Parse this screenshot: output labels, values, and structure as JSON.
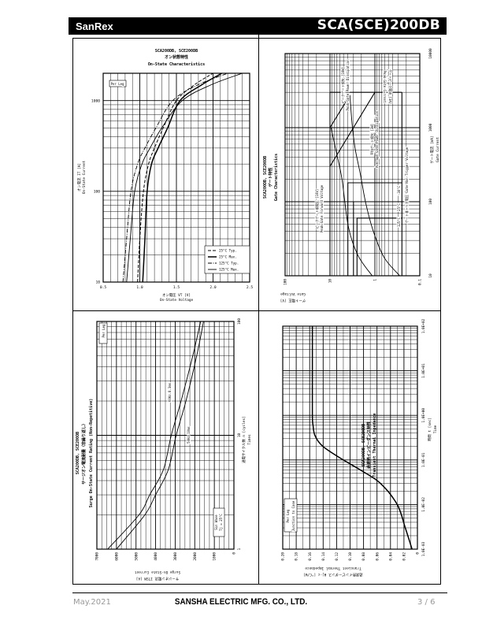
{
  "header": {
    "brand": "SanRex",
    "model": "SCA(SCE)200DB"
  },
  "footer": {
    "date": "May.2021",
    "company": "SANSHA ELECTRIC MFG. CO., LTD.",
    "page": "3 / 6"
  },
  "chart_data": [
    {
      "id": "on-state",
      "type": "line",
      "title_lines": [
        "SCA200DB, SCE200DB",
        "オン状態特性",
        "On-State Characteristics"
      ],
      "x_axis": {
        "label_lines": [
          "オン電圧 VT [V]",
          "On-State Voltage"
        ],
        "scale": "linear",
        "range": [
          0.5,
          2.5
        ],
        "grid_step": 0.1,
        "major_step": 0.5,
        "ticks": [
          0.5,
          1.0,
          1.5,
          2.0,
          2.5
        ],
        "tick_labels": [
          "0.5",
          "1.0",
          "1.5",
          "2.0",
          "2.5"
        ]
      },
      "y_axis": {
        "label_lines": [
          "オン電流 IT [A]",
          "On-State Current"
        ],
        "scale": "log",
        "range": [
          10,
          2000
        ],
        "ticks": [
          10,
          100,
          1000
        ],
        "tick_labels": [
          "10",
          "100",
          "1000"
        ]
      },
      "series": [
        {
          "name": "25°C Typ.",
          "line_style": "dashed",
          "points": [
            [
              0.97,
              10
            ],
            [
              1.0,
              30
            ],
            [
              1.05,
              100
            ],
            [
              1.12,
              200
            ],
            [
              1.2,
              300
            ],
            [
              1.32,
              500
            ],
            [
              1.5,
              1000
            ],
            [
              1.75,
              1500
            ],
            [
              2.0,
              2000
            ]
          ]
        },
        {
          "name": "25°C Max.",
          "line_style": "solid-thick",
          "points": [
            [
              1.04,
              10
            ],
            [
              1.07,
              30
            ],
            [
              1.1,
              100
            ],
            [
              1.16,
              200
            ],
            [
              1.25,
              300
            ],
            [
              1.38,
              500
            ],
            [
              1.55,
              1000
            ],
            [
              1.85,
              1500
            ],
            [
              2.12,
              2000
            ]
          ]
        },
        {
          "name": "125°C Typ.",
          "line_style": "dashdot",
          "points": [
            [
              0.77,
              10
            ],
            [
              0.82,
              30
            ],
            [
              0.88,
              100
            ],
            [
              0.97,
              200
            ],
            [
              1.07,
              300
            ],
            [
              1.22,
              500
            ],
            [
              1.45,
              1000
            ],
            [
              1.8,
              1500
            ],
            [
              2.2,
              2000
            ]
          ]
        },
        {
          "name": "125°C Max.",
          "line_style": "solid-thin",
          "points": [
            [
              0.82,
              10
            ],
            [
              0.87,
              30
            ],
            [
              0.93,
              100
            ],
            [
              1.03,
              200
            ],
            [
              1.14,
              300
            ],
            [
              1.3,
              500
            ],
            [
              1.58,
              1000
            ],
            [
              1.98,
              1500
            ],
            [
              2.4,
              2000
            ]
          ]
        }
      ],
      "legend": {
        "placement": "bottom-right",
        "show": true
      },
      "annotations": [
        "Per Leg"
      ]
    },
    {
      "id": "gate",
      "type": "line",
      "title_lines": [
        "SCA200DB, SCE200DB",
        "ゲート特性",
        "Gate Characteristics"
      ],
      "x_axis": {
        "label_lines": [
          "ゲート電流 [mA]",
          "Gate Current"
        ],
        "scale": "log",
        "range": [
          10,
          10000
        ],
        "ticks": [
          10,
          100,
          1000,
          10000
        ],
        "tick_labels": [
          "10",
          "100",
          "1000",
          "10000"
        ]
      },
      "y_axis": {
        "label_lines": [
          "ゲート電圧 [V]",
          "Gate Voltage"
        ],
        "scale": "log",
        "range": [
          0.1,
          100
        ],
        "ticks": [
          100,
          10,
          1,
          0.1
        ],
        "tick_labels": [
          "100",
          "10",
          "1",
          "0.1"
        ]
      },
      "series": [
        {
          "name": "Peak Gate Forward Voltage limit",
          "line_style": "straight",
          "points": [
            [
              10,
              10
            ],
            [
              3000,
              10
            ]
          ]
        },
        {
          "name": "Peak Gate Current limit",
          "line_style": "straight",
          "points": [
            [
              3000,
              10
            ],
            [
              3000,
              0.25
            ]
          ]
        },
        {
          "name": "Gate Non-Trigger Voltage",
          "line_style": "straight",
          "points": [
            [
              10,
              0.25
            ],
            [
              3000,
              0.25
            ]
          ]
        },
        {
          "name": "Gate trigger -30°C",
          "line_style": "straight",
          "points": [
            [
              10,
              4
            ],
            [
              180,
              4
            ],
            [
              180,
              0.25
            ]
          ]
        },
        {
          "name": "Gate trigger 25°C",
          "line_style": "straight",
          "points": [
            [
              10,
              3
            ],
            [
              100,
              3
            ],
            [
              100,
              0.25
            ]
          ]
        },
        {
          "name": "Gate trigger 125°C",
          "line_style": "straight",
          "points": [
            [
              10,
              2.5
            ],
            [
              60,
              2.5
            ],
            [
              60,
              0.25
            ]
          ]
        },
        {
          "name": "Peak Gate Power Dissipation 10W",
          "line_style": "straight",
          "points": [
            [
              1000,
              10
            ],
            [
              2750,
              3.6
            ]
          ]
        },
        {
          "name": "Average Gate Power Dissipation 3W",
          "line_style": "straight",
          "points": [
            [
              300,
              10
            ],
            [
              3000,
              1
            ]
          ]
        },
        {
          "name": "Gate characteristic upper",
          "line_style": "solid-thin",
          "points": [
            [
              10,
              1.15
            ],
            [
              19,
              2.4
            ],
            [
              46,
              3.9
            ],
            [
              200,
              5.4
            ],
            [
              445,
              7.1
            ],
            [
              1000,
              9.5
            ]
          ]
        },
        {
          "name": "Gate characteristic lower",
          "line_style": "solid-thin",
          "points": [
            [
              10,
              0.28
            ],
            [
              17.6,
              0.62
            ],
            [
              39,
              1.07
            ],
            [
              96,
              1.6
            ],
            [
              233,
              2.1
            ],
            [
              525,
              2.76
            ],
            [
              1080,
              3.2
            ],
            [
              2750,
              3.6
            ]
          ]
        }
      ],
      "annotations": [
        "ピークゲート順電圧 [10V]",
        "Peak Gate Forward Voltage",
        "ピークゲート損失 [10W]",
        "Peak Gate Power Dissipation",
        "ゲートピーク電流 [3A]",
        "Peak Gate Current",
        "平均ゲート損失 [3W]",
        "Average Gate Power Dissipation",
        "ゲート非トリガ電圧  Gate Non-Trigger Voltage",
        "125°C",
        "25°C",
        "-30°C"
      ]
    },
    {
      "id": "surge",
      "type": "line",
      "title_lines": [
        "SCA200DB, SCE200DB",
        "サージオン電流耐量（非繰り返し）",
        "Surge On-State Current Rating (Non-Repetitive)"
      ],
      "x_axis": {
        "label_lines": [
          "通電サイクル数 n [cycles]",
          "Times"
        ],
        "scale": "log",
        "range": [
          1,
          100
        ],
        "ticks": [
          1,
          10,
          100
        ],
        "tick_labels": [
          "1",
          "10",
          "100"
        ]
      },
      "y_axis": {
        "label_lines": [
          "サージオン電流 ITSM [A]",
          "Surge On-State Current"
        ],
        "scale": "linear",
        "range": [
          0,
          7000
        ],
        "grid_step": 250,
        "major_step": 1000,
        "ticks": [
          0,
          1000,
          2000,
          3000,
          4000,
          5000,
          6000,
          7000
        ],
        "tick_labels": [
          "0",
          "1000",
          "2000",
          "3000",
          "4000",
          "5000",
          "6000",
          "7000"
        ]
      },
      "series": [
        {
          "name": "60Hz 8.3ms",
          "line_style": "solid-thin",
          "points": [
            [
              1,
              6450
            ],
            [
              2,
              4850
            ],
            [
              3,
              4300
            ],
            [
              5,
              3600
            ],
            [
              10,
              3200
            ],
            [
              20,
              2700
            ],
            [
              50,
              2100
            ],
            [
              100,
              1700
            ]
          ]
        },
        {
          "name": "50Hz 10ms",
          "line_style": "solid-thin",
          "points": [
            [
              1,
              6000
            ],
            [
              2,
              4550
            ],
            [
              3,
              4000
            ],
            [
              5,
              3350
            ],
            [
              10,
              2950
            ],
            [
              20,
              2450
            ],
            [
              50,
              1900
            ],
            [
              100,
              1550
            ]
          ]
        }
      ],
      "annotations": [
        "Per Leg",
        "Sin Wave",
        "Tj = 25°C",
        "60Hz 8.3ms",
        "50Hz 10ms"
      ]
    },
    {
      "id": "thermal",
      "type": "line",
      "title_lines": [
        "SCA200DB, SCE200DB",
        "過渡熱インピーダンス特性",
        "Transient Thermal Impedance"
      ],
      "x_axis": {
        "label_lines": [
          "時間 t [sec]",
          "Time"
        ],
        "scale": "log",
        "range": [
          0.001,
          100
        ],
        "ticks": [
          0.001,
          0.01,
          0.1,
          1,
          10,
          100
        ],
        "tick_labels": [
          "1.0E-03",
          "1.0E-02",
          "1.0E-01",
          "1.0E+00",
          "1.0E+01",
          "1.0E+02"
        ]
      },
      "y_axis": {
        "label_lines": [
          "過渡熱インピーダンス θj-c [°C/W]",
          "Transient Thermal Impedance"
        ],
        "scale": "linear",
        "range": [
          0,
          0.2
        ],
        "grid_step": 0.01,
        "major_step": 0.02,
        "ticks": [
          0,
          0.02,
          0.04,
          0.06,
          0.08,
          0.1,
          0.12,
          0.14,
          0.16,
          0.18,
          0.2
        ],
        "tick_labels": [
          "0",
          "0.02",
          "0.04",
          "0.06",
          "0.08",
          "0.10",
          "0.12",
          "0.14",
          "0.16",
          "0.18",
          "0.20"
        ]
      },
      "series": [
        {
          "name": "Junction to Case",
          "line_style": "solid-thick",
          "points": [
            [
              0.001,
              0.008
            ],
            [
              0.003,
              0.018
            ],
            [
              0.01,
              0.03
            ],
            [
              0.03,
              0.055
            ],
            [
              0.06,
              0.085
            ],
            [
              0.1,
              0.11
            ],
            [
              0.2,
              0.14
            ],
            [
              0.35,
              0.152
            ],
            [
              0.6,
              0.155
            ],
            [
              1,
              0.156
            ],
            [
              10,
              0.156
            ],
            [
              100,
              0.156
            ]
          ]
        }
      ],
      "annotations": [
        "Per Leg",
        "Junction to Case"
      ]
    }
  ]
}
